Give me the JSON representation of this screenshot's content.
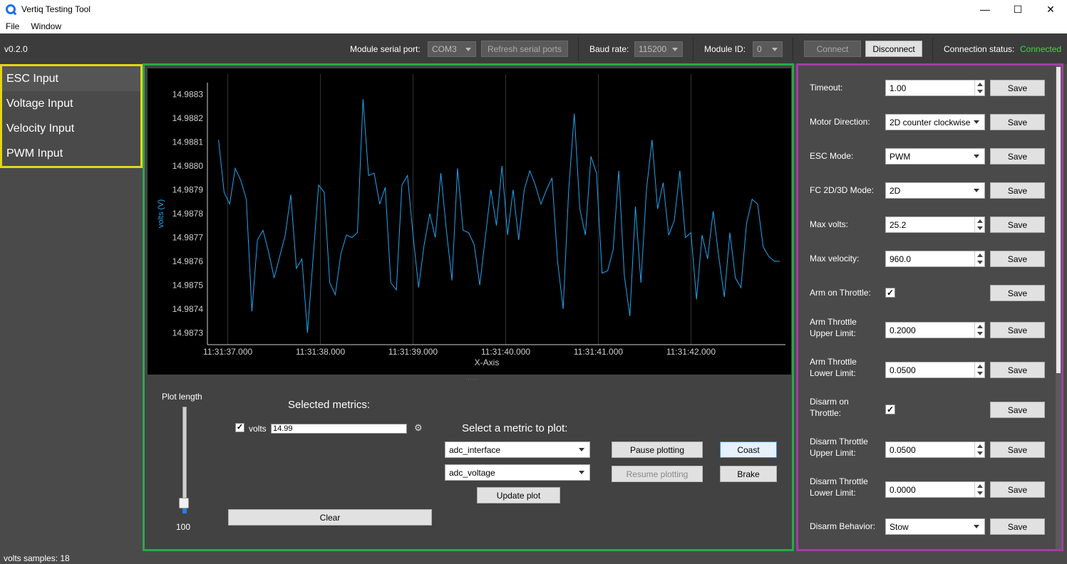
{
  "window": {
    "title": "Vertiq Testing Tool",
    "minimize": "—",
    "maximize": "☐",
    "close": "✕"
  },
  "menu": {
    "file": "File",
    "window": "Window"
  },
  "toolbar": {
    "version": "v0.2.0",
    "serial_port_label": "Module serial port:",
    "serial_port_value": "COM3",
    "refresh_label": "Refresh serial ports",
    "baud_label": "Baud rate:",
    "baud_value": "115200",
    "module_id_label": "Module ID:",
    "module_id_value": "0",
    "connect_label": "Connect",
    "disconnect_label": "Disconnect",
    "status_label": "Connection status:",
    "status_value": "Connected",
    "status_color": "#3fd73f"
  },
  "sidebar": {
    "items": [
      {
        "label": "ESC Input"
      },
      {
        "label": "Voltage Input"
      },
      {
        "label": "Velocity Input"
      },
      {
        "label": "PWM Input"
      }
    ]
  },
  "chart_data": {
    "type": "line",
    "xlabel": "X-Axis",
    "ylabel": "volts (V)",
    "ylim": [
      14.98725,
      14.98835
    ],
    "yticks": [
      "14.9883",
      "14.9882",
      "14.9881",
      "14.9880",
      "14.9879",
      "14.9878",
      "14.9877",
      "14.9876",
      "14.9875",
      "14.9874",
      "14.9873"
    ],
    "xticks": [
      "11:31:37.000",
      "11:31:38.000",
      "11:31:39.000",
      "11:31:40.000",
      "11:31:41.000",
      "11:31:42.000"
    ],
    "xlim": [
      36.78,
      43.02
    ],
    "grid": "vertical",
    "line_color": "#22a5f0",
    "series": [
      {
        "name": "volts",
        "x": [
          36.9,
          36.96,
          37.02,
          37.08,
          37.14,
          37.2,
          37.26,
          37.32,
          37.38,
          37.44,
          37.5,
          37.56,
          37.62,
          37.68,
          37.74,
          37.8,
          37.86,
          37.92,
          37.98,
          38.04,
          38.1,
          38.16,
          38.22,
          38.28,
          38.34,
          38.4,
          38.46,
          38.52,
          38.58,
          38.64,
          38.7,
          38.76,
          38.82,
          38.88,
          38.94,
          39.0,
          39.06,
          39.12,
          39.18,
          39.24,
          39.3,
          39.36,
          39.42,
          39.48,
          39.54,
          39.6,
          39.66,
          39.72,
          39.78,
          39.84,
          39.9,
          39.96,
          40.02,
          40.08,
          40.14,
          40.2,
          40.26,
          40.32,
          40.38,
          40.44,
          40.5,
          40.56,
          40.62,
          40.68,
          40.74,
          40.8,
          40.86,
          40.92,
          40.98,
          41.04,
          41.1,
          41.16,
          41.22,
          41.28,
          41.34,
          41.4,
          41.46,
          41.52,
          41.58,
          41.64,
          41.7,
          41.76,
          41.82,
          41.88,
          41.94,
          42.0,
          42.06,
          42.12,
          42.18,
          42.24,
          42.3,
          42.36,
          42.42,
          42.48,
          42.54,
          42.6,
          42.66,
          42.72,
          42.78,
          42.84,
          42.9,
          42.96
        ],
        "y": [
          14.98811,
          14.98789,
          14.98784,
          14.98799,
          14.98794,
          14.98786,
          14.98739,
          14.98769,
          14.98773,
          14.98764,
          14.98753,
          14.98762,
          14.98771,
          14.98788,
          14.98757,
          14.98761,
          14.9873,
          14.98761,
          14.98792,
          14.98789,
          14.98751,
          14.98746,
          14.98763,
          14.98771,
          14.9877,
          14.98772,
          14.98828,
          14.98796,
          14.98797,
          14.98784,
          14.98791,
          14.98751,
          14.98748,
          14.98792,
          14.98796,
          14.98771,
          14.98749,
          14.98767,
          14.9878,
          14.9877,
          14.98797,
          14.98773,
          14.98752,
          14.98799,
          14.98773,
          14.98772,
          14.98767,
          14.9875,
          14.9877,
          14.9879,
          14.98775,
          14.988,
          14.98771,
          14.9879,
          14.98769,
          14.9879,
          14.98798,
          14.98792,
          14.98784,
          14.9879,
          14.98795,
          14.9876,
          14.9874,
          14.9879,
          14.98822,
          14.98782,
          14.98771,
          14.98804,
          14.98797,
          14.98755,
          14.98756,
          14.98765,
          14.98798,
          14.98754,
          14.98737,
          14.98783,
          14.98751,
          14.9879,
          14.98811,
          14.98782,
          14.98793,
          14.98771,
          14.98777,
          14.98798,
          14.9877,
          14.98772,
          14.98744,
          14.98771,
          14.98761,
          14.98781,
          14.98762,
          14.98745,
          14.98772,
          14.98753,
          14.98749,
          14.98776,
          14.98786,
          14.98784,
          14.98766,
          14.98762,
          14.9876,
          14.9876
        ]
      }
    ]
  },
  "controls": {
    "plot_length_label": "Plot length",
    "plot_length_value": "100",
    "plot_length_fraction": 0.05,
    "selected_metrics_title": "Selected metrics:",
    "metric_name": "volts",
    "metric_value": "14.99",
    "metric_checked": "✓",
    "gear": "⚙",
    "clear_label": "Clear",
    "select_metric_title": "Select a metric to plot:",
    "interface_value": "adc_interface",
    "metric_select_value": "adc_voltage",
    "update_label": "Update plot",
    "pause_label": "Pause plotting",
    "resume_label": "Resume plotting",
    "coast_label": "Coast",
    "brake_label": "Brake",
    "splitter": "......"
  },
  "settings": {
    "save_label": "Save",
    "check": "✓",
    "rows": [
      {
        "label": "Timeout:",
        "kind": "spin",
        "value": "1.00"
      },
      {
        "label": "Motor Direction:",
        "kind": "combo",
        "value": "2D counter clockwise"
      },
      {
        "label": "ESC Mode:",
        "kind": "combo",
        "value": "PWM"
      },
      {
        "label": "FC 2D/3D Mode:",
        "kind": "combo",
        "value": "2D"
      },
      {
        "label": "Max volts:",
        "kind": "spin",
        "value": "25.2"
      },
      {
        "label": "Max velocity:",
        "kind": "spin",
        "value": "960.0"
      },
      {
        "label": "Arm on Throttle:",
        "kind": "check",
        "value": ""
      },
      {
        "label": "Arm Throttle",
        "label2": "Upper Limit:",
        "kind": "spin",
        "value": "0.2000"
      },
      {
        "label": "Arm Throttle",
        "label2": "Lower Limit:",
        "kind": "spin",
        "value": "0.0500"
      },
      {
        "label": "Disarm on",
        "label2": "Throttle:",
        "kind": "check",
        "value": ""
      },
      {
        "label": "Disarm Throttle",
        "label2": "Upper Limit:",
        "kind": "spin",
        "value": "0.0500"
      },
      {
        "label": "Disarm Throttle",
        "label2": "Lower Limit:",
        "kind": "spin",
        "value": "0.0000"
      },
      {
        "label": "Disarm Behavior:",
        "kind": "combo",
        "value": "Stow"
      }
    ]
  },
  "statusbar": {
    "text": "volts samples: 18"
  }
}
